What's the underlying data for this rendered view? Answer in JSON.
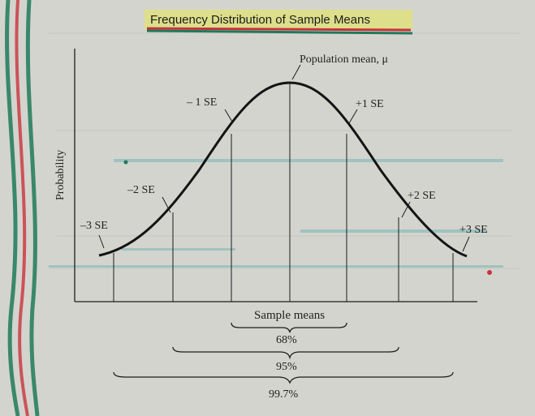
{
  "title": "Frequency Distribution of Sample Means",
  "y_axis_label": "Probability",
  "x_axis_label": "Sample means",
  "curve_label": "Population mean, μ",
  "se_labels": {
    "neg3": "–3 SE",
    "neg2": "–2 SE",
    "neg1": "– 1 SE",
    "pos1": "+1 SE",
    "pos2": "+2 SE",
    "pos3": "+3 SE"
  },
  "ranges": {
    "one_se": "68%",
    "two_se": "95%",
    "three_se": "99.7%"
  },
  "colors": {
    "page": "#d3d3cd",
    "ink": "#1c1c1c",
    "highlight_yellow": "#e8ee3a",
    "marker_red": "#c8323c",
    "marker_green": "#1e7a5a"
  }
}
